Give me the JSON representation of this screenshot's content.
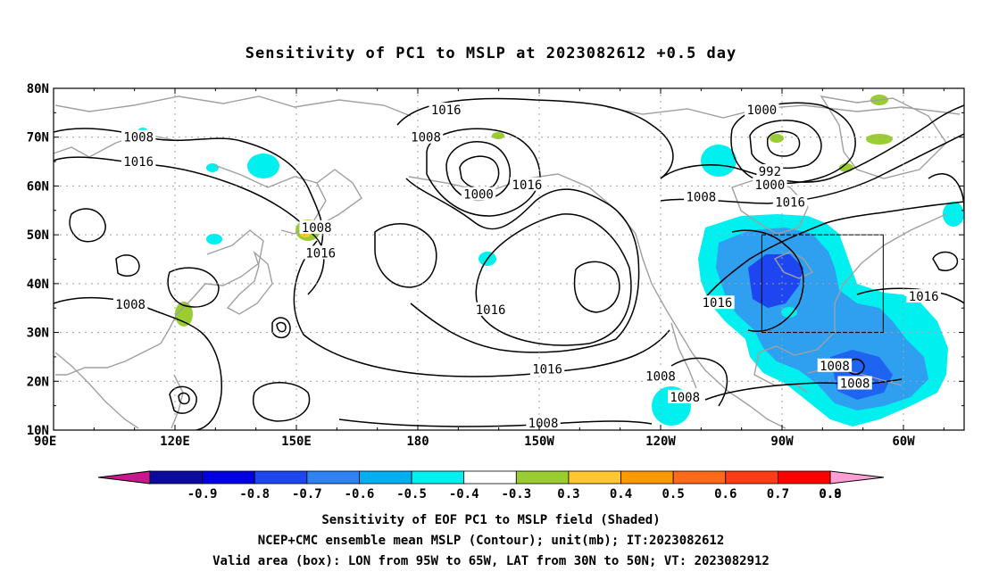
{
  "title": "Sensitivity of PC1 to MSLP at 2023082612 +0.5 day",
  "lat_labels": [
    "80N",
    "70N",
    "60N",
    "50N",
    "40N",
    "30N",
    "20N",
    "10N"
  ],
  "lon_labels": [
    "90E",
    "120E",
    "150E",
    "180",
    "150W",
    "120W",
    "90W",
    "60W"
  ],
  "contour_labels": [
    {
      "text": "1016",
      "lon": -173,
      "lat": 75.6
    },
    {
      "text": "1008",
      "lon": -178,
      "lat": 70
    },
    {
      "text": "1000",
      "lon": -95,
      "lat": 75.6
    },
    {
      "text": "992",
      "lon": -93,
      "lat": 63
    },
    {
      "text": "1000",
      "lon": -93,
      "lat": 60.3
    },
    {
      "text": "1008",
      "lon": -110,
      "lat": 57.8
    },
    {
      "text": "1016",
      "lon": -88,
      "lat": 56.7
    },
    {
      "text": "1008",
      "lon": 111,
      "lat": 70
    },
    {
      "text": "1016",
      "lon": 111,
      "lat": 65
    },
    {
      "text": "1008",
      "lon": 155,
      "lat": 51.5
    },
    {
      "text": "1016",
      "lon": 156,
      "lat": 46.3
    },
    {
      "text": "1008",
      "lon": 109,
      "lat": 35.8
    },
    {
      "text": "1000",
      "lon": -165,
      "lat": 58.3
    },
    {
      "text": "1016",
      "lon": -153,
      "lat": 60.3
    },
    {
      "text": "1016",
      "lon": -162,
      "lat": 34.7
    },
    {
      "text": "1016",
      "lon": -148,
      "lat": 22.5
    },
    {
      "text": "1008",
      "lon": -149,
      "lat": 11.5
    },
    {
      "text": "1016",
      "lon": -106,
      "lat": 36.1
    },
    {
      "text": "1008",
      "lon": -120,
      "lat": 21.1
    },
    {
      "text": "1008",
      "lon": -114,
      "lat": 16.8
    },
    {
      "text": "1008",
      "lon": -77,
      "lat": 23.2
    },
    {
      "text": "1008",
      "lon": -72,
      "lat": 19.6
    },
    {
      "text": "1016",
      "lon": -55,
      "lat": 37.4
    }
  ],
  "colorbar": {
    "labels": [
      "-0.9",
      "-0.8",
      "-0.7",
      "-0.6",
      "-0.5",
      "-0.4",
      "-0.3",
      "0.3",
      "0.4",
      "0.5",
      "0.6",
      "0.7",
      "0.8",
      "0.9"
    ],
    "colors": [
      "#0a0a9e",
      "#0000e0",
      "#1e46f0",
      "#2f82f0",
      "#00b0f0",
      "#00f0f0",
      "#ffffff",
      "#9acd32",
      "#ffc832",
      "#ff9900",
      "#ff6a1a",
      "#ff3c14",
      "#ff0000"
    ],
    "low_end_color": "#c8188c",
    "high_end_color": "#ff9ed2"
  },
  "captions": [
    "Sensitivity of EOF PC1 to MSLP field (Shaded)",
    "NCEP+CMC ensemble mean MSLP (Contour); unit(mb); IT:2023082612",
    "Valid area (box): LON from 95W to 65W, LAT from 30N to 50N; VT: 2023082912"
  ],
  "valid_box": {
    "lon_west": -95,
    "lon_east": -65,
    "lat_south": 30,
    "lat_north": 50
  },
  "colors": {
    "contour": "#000000",
    "coastline": "#a0a0a0",
    "grid": "#a0a0a0"
  }
}
